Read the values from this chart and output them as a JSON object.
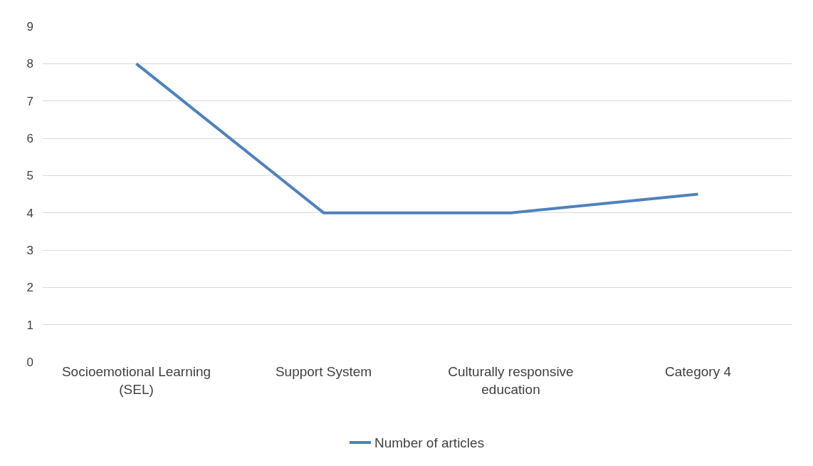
{
  "chart_data": {
    "type": "line",
    "categories": [
      "Socioemotional Learning (SEL)",
      "Support System",
      "Culturally responsive education",
      "Category 4"
    ],
    "series": [
      {
        "name": "Number of articles",
        "color": "#4f81bd",
        "values": [
          8,
          4,
          4,
          4.5
        ]
      }
    ],
    "ylim": [
      0,
      9
    ],
    "yticks": [
      0,
      1,
      2,
      3,
      4,
      5,
      6,
      7,
      8,
      9
    ],
    "grid": "y",
    "legend": "bottom",
    "marker": "none",
    "line_style": "solid"
  }
}
